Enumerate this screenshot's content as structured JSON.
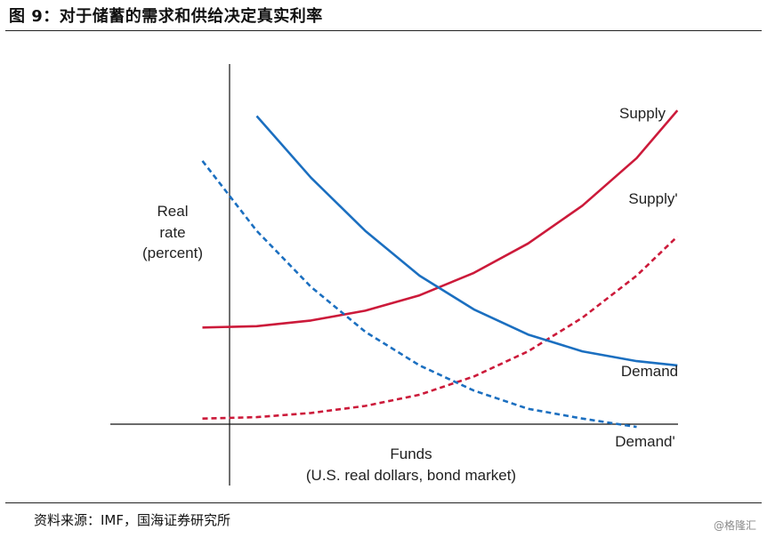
{
  "figure": {
    "title": "图 9：对于储蓄的需求和供给决定真实利率",
    "source": "资料来源：IMF，国海证券研究所",
    "watermark": "@格隆汇"
  },
  "chart_data": {
    "type": "line",
    "ylabel": [
      "Real",
      "rate",
      "(percent)"
    ],
    "xlabel": [
      "Funds",
      "(U.S. real dollars, bond market)"
    ],
    "axis_ticks": false,
    "grid": false,
    "legend": "none",
    "series": [
      {
        "name": "Supply",
        "style": "solid",
        "color": "#cc1a3a",
        "points": [
          [
            -0.1,
            0.345
          ],
          [
            0.1,
            0.35
          ],
          [
            0.3,
            0.37
          ],
          [
            0.5,
            0.405
          ],
          [
            0.7,
            0.46
          ],
          [
            0.9,
            0.54
          ],
          [
            1.1,
            0.645
          ],
          [
            1.3,
            0.78
          ],
          [
            1.5,
            0.95
          ],
          [
            1.65,
            1.12
          ]
        ]
      },
      {
        "name": "Supply'",
        "style": "dashed",
        "color": "#cc1a3a",
        "points": [
          [
            -0.1,
            0.02
          ],
          [
            0.1,
            0.025
          ],
          [
            0.3,
            0.04
          ],
          [
            0.5,
            0.065
          ],
          [
            0.7,
            0.105
          ],
          [
            0.9,
            0.17
          ],
          [
            1.1,
            0.26
          ],
          [
            1.3,
            0.38
          ],
          [
            1.5,
            0.53
          ],
          [
            1.65,
            0.67
          ]
        ]
      },
      {
        "name": "Demand",
        "style": "solid",
        "color": "#1b6fc0",
        "points": [
          [
            0.1,
            1.1
          ],
          [
            0.3,
            0.88
          ],
          [
            0.5,
            0.69
          ],
          [
            0.7,
            0.53
          ],
          [
            0.9,
            0.41
          ],
          [
            1.1,
            0.32
          ],
          [
            1.3,
            0.26
          ],
          [
            1.5,
            0.225
          ],
          [
            1.65,
            0.21
          ]
        ]
      },
      {
        "name": "Demand'",
        "style": "dashed",
        "color": "#1b6fc0",
        "points": [
          [
            -0.1,
            0.94
          ],
          [
            0.1,
            0.69
          ],
          [
            0.3,
            0.49
          ],
          [
            0.5,
            0.33
          ],
          [
            0.7,
            0.21
          ],
          [
            0.9,
            0.12
          ],
          [
            1.1,
            0.055
          ],
          [
            1.3,
            0.02
          ],
          [
            1.5,
            -0.01
          ]
        ]
      }
    ]
  }
}
